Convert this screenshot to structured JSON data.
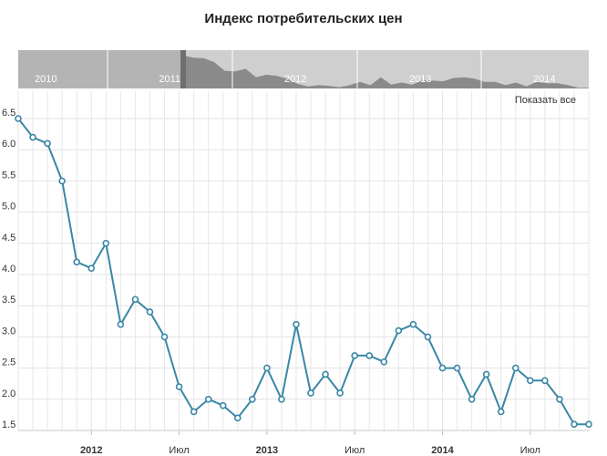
{
  "title": "Индекс потребительских цен",
  "show_all_label": "Показать все",
  "navigator": {
    "labels": [
      "2010",
      "2011",
      "2012",
      "2013",
      "2014"
    ]
  },
  "chart_data": {
    "type": "line",
    "title": "Индекс потребительских цен",
    "xlabel": "",
    "ylabel": "",
    "ylim": [
      1.5,
      6.5
    ],
    "y_ticks": [
      "1.5",
      "2.0",
      "2.5",
      "3.0",
      "3.5",
      "4.0",
      "4.5",
      "5.0",
      "5.5",
      "6.0",
      "6.5"
    ],
    "x_range": [
      "2011-08",
      "2014-11"
    ],
    "x_ticks": [
      {
        "date": "2012-01",
        "label": "2012",
        "bold": true
      },
      {
        "date": "2012-07",
        "label": "Июл",
        "bold": false
      },
      {
        "date": "2013-01",
        "label": "2013",
        "bold": true
      },
      {
        "date": "2013-07",
        "label": "Июл",
        "bold": false
      },
      {
        "date": "2014-01",
        "label": "2014",
        "bold": true
      },
      {
        "date": "2014-07",
        "label": "Июл",
        "bold": false
      }
    ],
    "grid": true,
    "color": "#3a87a6",
    "series": [
      {
        "x": [
          "2011-08",
          "2011-09",
          "2011-10",
          "2011-11",
          "2011-12",
          "2012-01",
          "2012-02",
          "2012-03",
          "2012-04",
          "2012-05",
          "2012-06",
          "2012-07",
          "2012-08",
          "2012-09",
          "2012-10",
          "2012-11",
          "2012-12",
          "2013-01",
          "2013-02",
          "2013-03",
          "2013-04",
          "2013-05",
          "2013-06",
          "2013-07",
          "2013-08",
          "2013-09",
          "2013-10",
          "2013-11",
          "2013-12",
          "2014-01",
          "2014-02",
          "2014-03",
          "2014-04",
          "2014-05",
          "2014-06",
          "2014-07",
          "2014-08",
          "2014-09",
          "2014-10",
          "2014-11"
        ],
        "values": [
          6.5,
          6.2,
          6.1,
          5.5,
          4.2,
          4.1,
          4.5,
          3.2,
          3.6,
          3.4,
          3.0,
          2.2,
          1.8,
          2.0,
          1.9,
          1.7,
          2.0,
          2.5,
          2.0,
          3.2,
          2.1,
          2.4,
          2.1,
          2.7,
          2.7,
          2.6,
          3.1,
          3.2,
          3.0,
          2.5,
          2.5,
          2.0,
          2.4,
          1.8,
          2.5,
          2.3,
          2.3,
          2.0,
          1.6,
          1.6
        ]
      }
    ]
  }
}
